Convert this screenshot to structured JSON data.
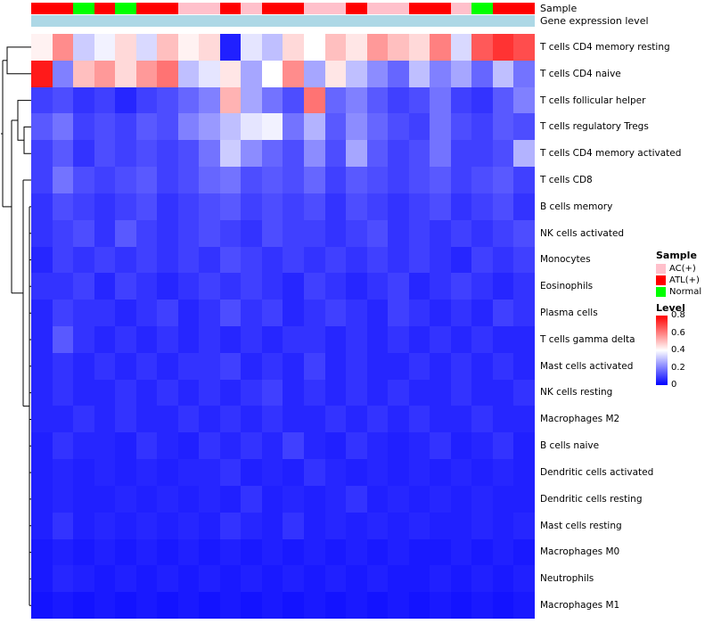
{
  "annotations": {
    "sample_label": "Sample",
    "gene_label": "Gene expression level",
    "gene_color": "#ADD8E6",
    "sample_colors": {
      "AC(+)": "#FFC0CB",
      "ATL(+)": "#FF0000",
      "Normal": "#00FF00"
    },
    "sample_per_column": [
      "ATL(+)",
      "ATL(+)",
      "Normal",
      "ATL(+)",
      "Normal",
      "ATL(+)",
      "ATL(+)",
      "AC(+)",
      "AC(+)",
      "ATL(+)",
      "AC(+)",
      "ATL(+)",
      "ATL(+)",
      "AC(+)",
      "AC(+)",
      "ATL(+)",
      "AC(+)",
      "AC(+)",
      "ATL(+)",
      "ATL(+)",
      "AC(+)",
      "Normal",
      "ATL(+)",
      "ATL(+)"
    ]
  },
  "legend": {
    "sample_title": "Sample",
    "sample_items": [
      {
        "label": "AC(+)",
        "color": "#FFC0CB"
      },
      {
        "label": "ATL(+)",
        "color": "#FF0000"
      },
      {
        "label": "Normal",
        "color": "#00FF00"
      }
    ],
    "level_title": "Level",
    "level_ticks": [
      "0.8",
      "0.6",
      "0.4",
      "0.2",
      "0"
    ],
    "level_gradient_colors": [
      "#FF0000",
      "#FFFFFF",
      "#0000FF"
    ]
  },
  "chart_data": {
    "type": "heatmap",
    "value_range": [
      0,
      0.8
    ],
    "colormap": "blue-white-red",
    "columns_count": 24,
    "rows": [
      "T cells CD4 memory resting",
      "T cells CD4 naive",
      "T cells follicular helper",
      "T cells regulatory  Tregs",
      "T cells CD4 memory activated",
      "T cells CD8",
      "B cells memory",
      "NK cells activated",
      "Monocytes",
      "Eosinophils",
      "Plasma cells",
      "T cells gamma delta",
      "Mast cells activated",
      "NK cells resting",
      "Macrophages M2",
      "B cells naive",
      "Dendritic cells activated",
      "Dendritic cells resting",
      "Mast cells resting",
      "Macrophages M0",
      "Neutrophils",
      "Macrophages M1"
    ],
    "values": [
      [
        0.42,
        0.58,
        0.32,
        0.38,
        0.46,
        0.34,
        0.5,
        0.42,
        0.46,
        0.05,
        0.36,
        0.3,
        0.46,
        0.4,
        0.5,
        0.44,
        0.56,
        0.5,
        0.46,
        0.6,
        0.34,
        0.66,
        0.72,
        0.68
      ],
      [
        0.76,
        0.2,
        0.5,
        0.56,
        0.46,
        0.56,
        0.62,
        0.3,
        0.36,
        0.44,
        0.26,
        0.4,
        0.58,
        0.26,
        0.44,
        0.3,
        0.22,
        0.16,
        0.3,
        0.2,
        0.26,
        0.16,
        0.3,
        0.18
      ],
      [
        0.1,
        0.12,
        0.08,
        0.1,
        0.06,
        0.1,
        0.12,
        0.16,
        0.2,
        0.52,
        0.26,
        0.18,
        0.12,
        0.62,
        0.16,
        0.2,
        0.14,
        0.1,
        0.12,
        0.18,
        0.1,
        0.08,
        0.14,
        0.2
      ],
      [
        0.14,
        0.18,
        0.1,
        0.12,
        0.1,
        0.14,
        0.12,
        0.2,
        0.24,
        0.3,
        0.36,
        0.38,
        0.18,
        0.28,
        0.14,
        0.22,
        0.16,
        0.12,
        0.1,
        0.18,
        0.12,
        0.1,
        0.14,
        0.12
      ],
      [
        0.1,
        0.14,
        0.08,
        0.12,
        0.1,
        0.12,
        0.1,
        0.12,
        0.18,
        0.32,
        0.22,
        0.16,
        0.12,
        0.22,
        0.12,
        0.26,
        0.14,
        0.1,
        0.12,
        0.18,
        0.1,
        0.1,
        0.12,
        0.28
      ],
      [
        0.1,
        0.18,
        0.12,
        0.1,
        0.12,
        0.14,
        0.1,
        0.12,
        0.16,
        0.18,
        0.12,
        0.14,
        0.12,
        0.16,
        0.1,
        0.14,
        0.12,
        0.1,
        0.12,
        0.14,
        0.1,
        0.12,
        0.14,
        0.1
      ],
      [
        0.08,
        0.12,
        0.1,
        0.08,
        0.1,
        0.12,
        0.08,
        0.1,
        0.12,
        0.14,
        0.1,
        0.12,
        0.1,
        0.12,
        0.08,
        0.12,
        0.1,
        0.08,
        0.1,
        0.12,
        0.08,
        0.1,
        0.12,
        0.08
      ],
      [
        0.08,
        0.1,
        0.12,
        0.08,
        0.14,
        0.1,
        0.08,
        0.1,
        0.12,
        0.1,
        0.08,
        0.12,
        0.1,
        0.1,
        0.08,
        0.1,
        0.12,
        0.08,
        0.1,
        0.08,
        0.1,
        0.08,
        0.1,
        0.12
      ],
      [
        0.06,
        0.1,
        0.08,
        0.1,
        0.08,
        0.1,
        0.08,
        0.1,
        0.08,
        0.12,
        0.1,
        0.08,
        0.1,
        0.08,
        0.1,
        0.08,
        0.1,
        0.08,
        0.1,
        0.08,
        0.06,
        0.1,
        0.08,
        0.1
      ],
      [
        0.08,
        0.08,
        0.1,
        0.06,
        0.1,
        0.08,
        0.06,
        0.08,
        0.1,
        0.08,
        0.1,
        0.08,
        0.06,
        0.1,
        0.08,
        0.06,
        0.08,
        0.1,
        0.06,
        0.08,
        0.1,
        0.08,
        0.06,
        0.08
      ],
      [
        0.06,
        0.1,
        0.08,
        0.08,
        0.06,
        0.08,
        0.1,
        0.06,
        0.08,
        0.12,
        0.08,
        0.1,
        0.06,
        0.08,
        0.1,
        0.08,
        0.06,
        0.1,
        0.08,
        0.06,
        0.08,
        0.06,
        0.1,
        0.08
      ],
      [
        0.06,
        0.14,
        0.08,
        0.06,
        0.08,
        0.06,
        0.08,
        0.06,
        0.08,
        0.06,
        0.08,
        0.06,
        0.08,
        0.08,
        0.06,
        0.08,
        0.06,
        0.08,
        0.06,
        0.08,
        0.06,
        0.08,
        0.06,
        0.06
      ],
      [
        0.06,
        0.08,
        0.06,
        0.08,
        0.06,
        0.08,
        0.06,
        0.08,
        0.08,
        0.1,
        0.06,
        0.08,
        0.06,
        0.1,
        0.06,
        0.08,
        0.06,
        0.06,
        0.08,
        0.06,
        0.08,
        0.06,
        0.08,
        0.06
      ],
      [
        0.06,
        0.08,
        0.06,
        0.06,
        0.08,
        0.06,
        0.08,
        0.06,
        0.08,
        0.06,
        0.08,
        0.1,
        0.06,
        0.08,
        0.06,
        0.08,
        0.06,
        0.08,
        0.06,
        0.06,
        0.08,
        0.06,
        0.06,
        0.08
      ],
      [
        0.06,
        0.06,
        0.08,
        0.06,
        0.08,
        0.06,
        0.06,
        0.08,
        0.06,
        0.08,
        0.06,
        0.08,
        0.06,
        0.06,
        0.08,
        0.06,
        0.08,
        0.06,
        0.08,
        0.06,
        0.06,
        0.08,
        0.06,
        0.06
      ],
      [
        0.05,
        0.08,
        0.06,
        0.06,
        0.05,
        0.08,
        0.06,
        0.05,
        0.08,
        0.06,
        0.08,
        0.06,
        0.1,
        0.06,
        0.05,
        0.08,
        0.06,
        0.05,
        0.06,
        0.08,
        0.05,
        0.06,
        0.08,
        0.05
      ],
      [
        0.05,
        0.06,
        0.05,
        0.06,
        0.05,
        0.06,
        0.05,
        0.06,
        0.06,
        0.08,
        0.05,
        0.06,
        0.05,
        0.08,
        0.06,
        0.05,
        0.06,
        0.05,
        0.06,
        0.05,
        0.06,
        0.05,
        0.06,
        0.05
      ],
      [
        0.05,
        0.06,
        0.05,
        0.05,
        0.06,
        0.05,
        0.06,
        0.05,
        0.06,
        0.05,
        0.08,
        0.05,
        0.06,
        0.05,
        0.06,
        0.08,
        0.05,
        0.06,
        0.05,
        0.06,
        0.05,
        0.06,
        0.05,
        0.05
      ],
      [
        0.05,
        0.08,
        0.05,
        0.06,
        0.05,
        0.06,
        0.05,
        0.06,
        0.05,
        0.08,
        0.06,
        0.05,
        0.08,
        0.05,
        0.06,
        0.05,
        0.06,
        0.05,
        0.06,
        0.05,
        0.05,
        0.06,
        0.05,
        0.06
      ],
      [
        0.04,
        0.05,
        0.04,
        0.05,
        0.04,
        0.05,
        0.04,
        0.05,
        0.04,
        0.05,
        0.04,
        0.05,
        0.04,
        0.05,
        0.04,
        0.05,
        0.04,
        0.05,
        0.04,
        0.04,
        0.05,
        0.04,
        0.05,
        0.04
      ],
      [
        0.04,
        0.06,
        0.05,
        0.04,
        0.05,
        0.04,
        0.05,
        0.04,
        0.05,
        0.04,
        0.05,
        0.04,
        0.05,
        0.04,
        0.05,
        0.04,
        0.05,
        0.04,
        0.04,
        0.05,
        0.04,
        0.05,
        0.04,
        0.05
      ],
      [
        0.03,
        0.04,
        0.03,
        0.04,
        0.03,
        0.04,
        0.03,
        0.04,
        0.03,
        0.04,
        0.03,
        0.04,
        0.03,
        0.04,
        0.03,
        0.04,
        0.03,
        0.04,
        0.03,
        0.04,
        0.03,
        0.04,
        0.03,
        0.04
      ]
    ]
  }
}
